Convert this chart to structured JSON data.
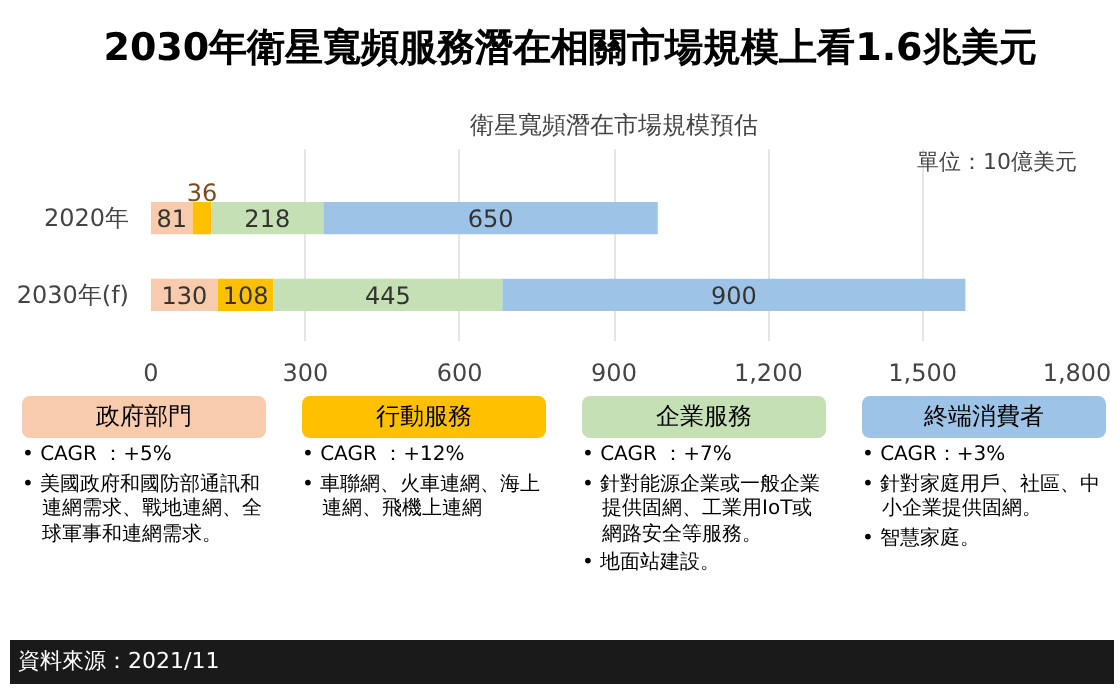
{
  "chart_data": {
    "type": "bar",
    "orientation": "horizontal",
    "stacked": true,
    "title": "2030年衛星寬頻服務潛在相關市場規模上看1.6兆美元",
    "subtitle": "衛星寬頻潛在市場規模預估",
    "categories": [
      "2020年",
      "2030年(f)"
    ],
    "series": [
      {
        "name": "政府部門",
        "color": "#f8cbad",
        "values": [
          81,
          130
        ]
      },
      {
        "name": "行動服務",
        "color": "#ffc000",
        "values": [
          36,
          108
        ]
      },
      {
        "name": "企業服務",
        "color": "#c5e0b4",
        "values": [
          218,
          445
        ]
      },
      {
        "name": "終端消費者",
        "color": "#9dc3e6",
        "values": [
          650,
          900
        ]
      }
    ],
    "xlim": [
      0,
      1800
    ],
    "xticks": [
      0,
      300,
      600,
      900,
      {
        "value": 1200,
        "label": "1,200"
      },
      {
        "value": 1500,
        "label": "1,500"
      },
      {
        "value": 1800,
        "label": "1,800"
      }
    ],
    "grid": "x",
    "legend": "bottom",
    "data_labels": true,
    "annotations": [
      "單位：10億美元",
      "• CAGR ：+5%\n• 美國政府和國防部通訊和連網需求、戰地連網、全球軍事和連網需求。",
      "• CAGR ：+12%\n• 車聯網、火車連網、海上連網、飛機上連網",
      "• CAGR ：+7%\n• 針對能源企業或一般企業提供固網、工業用IoT或網路安全等服務。\n• 地面站建設。",
      "• CAGR：+3%\n• 針對家庭用戶、社區、中小企業提供固網。\n• 智慧家庭。",
      "資料來源：2021/11"
    ]
  }
}
